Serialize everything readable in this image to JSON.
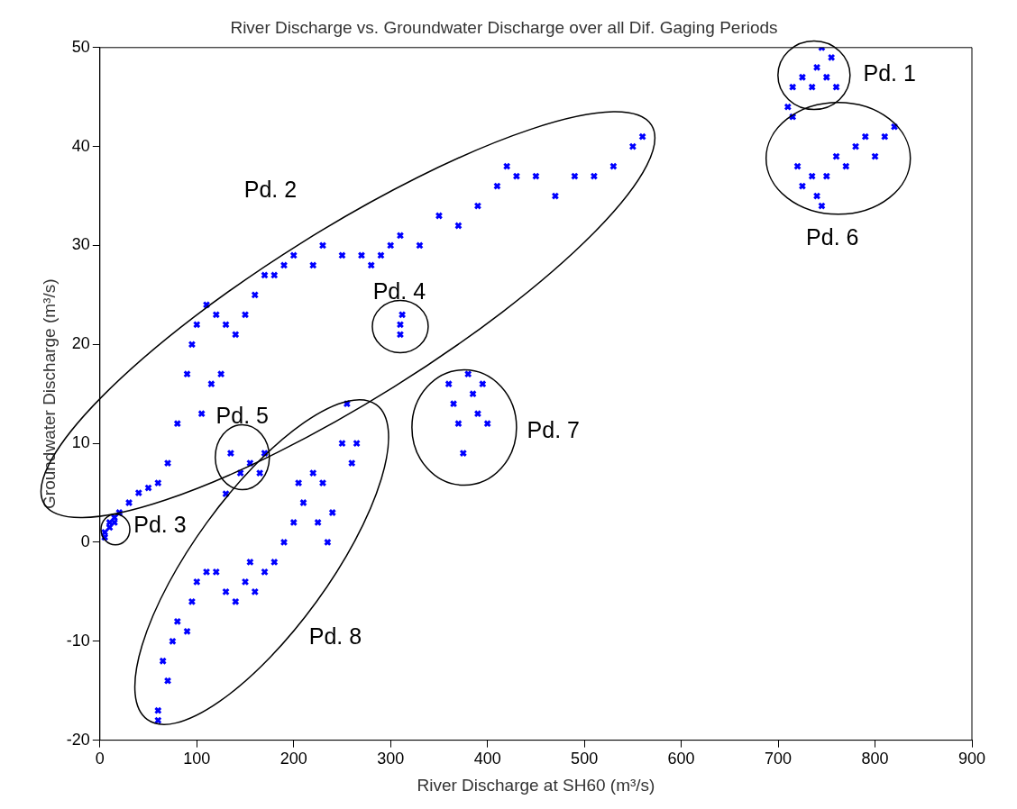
{
  "chart_data": {
    "type": "scatter",
    "title": "River Discharge vs. Groundwater Discharge over all Dif. Gaging Periods",
    "xlabel": "River Discharge at SH60 (m³/s)",
    "ylabel": "Groundwater Discharge (m³/s)",
    "xlim": [
      0,
      900
    ],
    "xticks": [
      0,
      100,
      200,
      300,
      400,
      500,
      600,
      700,
      800,
      900
    ],
    "ylim": [
      -20,
      50
    ],
    "yticks": [
      -20,
      -10,
      0,
      10,
      20,
      30,
      40,
      50
    ],
    "grid": false,
    "legend": false,
    "marker": "cross",
    "series": [
      {
        "color": "#0000ff",
        "x": [
          5,
          10,
          15,
          20,
          30,
          40,
          50,
          60,
          70,
          80,
          90,
          95,
          100,
          105,
          110,
          115,
          120,
          125,
          130,
          140,
          150,
          160,
          170,
          180,
          190,
          200,
          220,
          230,
          250,
          270,
          280,
          290,
          300,
          310,
          330,
          350,
          370,
          390,
          410,
          420,
          430,
          450,
          470,
          490,
          510,
          530,
          550,
          560,
          5,
          10,
          15,
          310,
          312,
          310,
          130,
          135,
          145,
          155,
          165,
          170,
          360,
          365,
          370,
          375,
          380,
          385,
          390,
          395,
          400,
          60,
          60,
          65,
          70,
          75,
          80,
          90,
          95,
          100,
          110,
          120,
          130,
          140,
          150,
          155,
          160,
          170,
          180,
          190,
          200,
          205,
          210,
          220,
          225,
          230,
          235,
          240,
          250,
          255,
          260,
          265,
          710,
          715,
          725,
          735,
          740,
          745,
          750,
          755,
          760,
          715,
          720,
          725,
          735,
          740,
          745,
          750,
          760,
          770,
          780,
          790,
          800,
          810,
          820
        ],
        "values": [
          1,
          2,
          2.5,
          3,
          4,
          5,
          5.5,
          6,
          8,
          12,
          17,
          20,
          22,
          13,
          24,
          16,
          23,
          17,
          22,
          21,
          23,
          25,
          27,
          27,
          28,
          29,
          28,
          30,
          29,
          29,
          28,
          29,
          30,
          31,
          30,
          33,
          32,
          34,
          36,
          38,
          37,
          37,
          35,
          37,
          37,
          38,
          40,
          41,
          0.5,
          1.5,
          2,
          21,
          23,
          22,
          4.9,
          9,
          7,
          8,
          7,
          9,
          16,
          14,
          12,
          9,
          17,
          15,
          13,
          16,
          12,
          -18,
          -17,
          -12,
          -14,
          -10,
          -8,
          -9,
          -6,
          -4,
          -3,
          -3,
          -5,
          -6,
          -4,
          -2,
          -5,
          -3,
          -2,
          0,
          2,
          6,
          4,
          7,
          2,
          6,
          0,
          3,
          10,
          14,
          8,
          10,
          44,
          46,
          47,
          46,
          48,
          50,
          47,
          49,
          46,
          43,
          38,
          36,
          37,
          35,
          34,
          37,
          39,
          38,
          40,
          41,
          39,
          41,
          42
        ]
      }
    ],
    "annotations": [
      "Pd. 1",
      "Pd. 2",
      "Pd. 3",
      "Pd. 4",
      "Pd. 5",
      "Pd. 6",
      "Pd. 7",
      "Pd. 8"
    ]
  }
}
